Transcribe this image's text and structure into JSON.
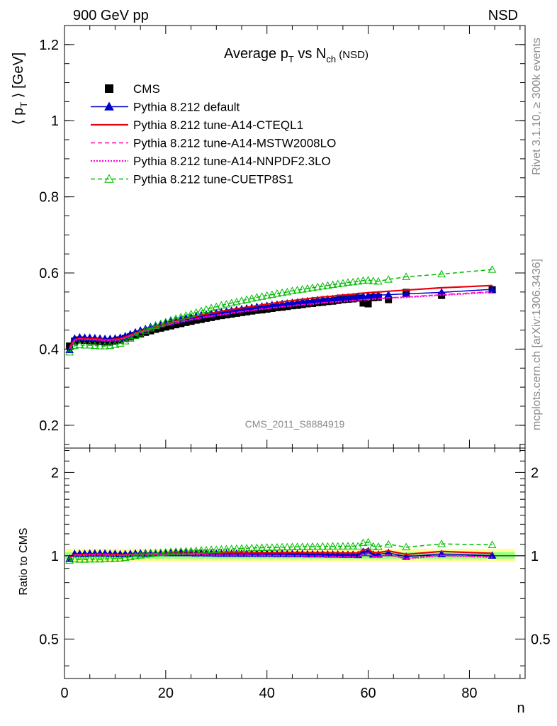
{
  "header": {
    "left": "900 GeV pp",
    "right": "NSD"
  },
  "side_labels": {
    "top": "Rivet 3.1.10, ≥ 300k events",
    "bottom": "mcplots.cern.ch [arXiv:1306.3436]"
  },
  "chart_data": {
    "type": "line",
    "title": "Average p",
    "title_sub1": "T",
    "title_mid": " vs N",
    "title_sub2": "ch",
    "title_suffix": " (NSD)",
    "ylabel_main": "⟨ p",
    "ylabel_sub": "T",
    "ylabel_tail": " ⟩ [GeV]",
    "ratio_ylabel": "Ratio to CMS",
    "xlabel": "n",
    "watermark": "CMS_2011_S8884919",
    "xlim": [
      0,
      91
    ],
    "ylim": [
      0.14,
      1.25
    ],
    "ratio_ylim": [
      0.36,
      2.45
    ],
    "x_ticks": [
      "0",
      "20",
      "40",
      "60",
      "80"
    ],
    "y_ticks": [
      "0.2",
      "0.4",
      "0.6",
      "0.8",
      "1",
      "1.2"
    ],
    "ratio_ticks": [
      "0.5",
      "1",
      "2"
    ],
    "x": [
      1,
      2,
      3,
      4,
      5,
      6,
      7,
      8,
      9,
      10,
      11,
      12,
      13,
      14,
      15,
      16,
      17,
      18,
      19,
      20,
      21,
      22,
      23,
      24,
      25,
      26,
      27,
      28,
      29,
      30,
      31,
      32,
      33,
      34,
      35,
      36,
      37,
      38,
      39,
      40,
      41,
      42,
      43,
      44,
      45,
      46,
      47,
      48,
      49,
      50,
      51,
      52,
      53,
      54,
      55,
      56,
      57,
      58,
      59,
      60,
      61,
      62,
      64,
      67.5,
      74.5,
      84.5
    ],
    "series": [
      {
        "name": "CMS",
        "color": "#000000",
        "style": "square",
        "values": [
          0.408,
          0.421,
          0.424,
          0.423,
          0.422,
          0.421,
          0.42,
          0.419,
          0.42,
          0.421,
          0.424,
          0.428,
          0.432,
          0.436,
          0.44,
          0.444,
          0.448,
          0.452,
          0.455,
          0.458,
          0.461,
          0.464,
          0.467,
          0.47,
          0.473,
          0.476,
          0.478,
          0.481,
          0.483,
          0.486,
          0.488,
          0.49,
          0.492,
          0.494,
          0.496,
          0.498,
          0.5,
          0.502,
          0.503,
          0.505,
          0.507,
          0.509,
          0.51,
          0.512,
          0.514,
          0.515,
          0.517,
          0.519,
          0.52,
          0.522,
          0.523,
          0.525,
          0.526,
          0.528,
          0.53,
          0.531,
          0.532,
          0.534,
          0.521,
          0.519,
          0.535,
          0.536,
          0.53,
          0.549,
          0.541,
          0.556
        ]
      },
      {
        "name": "Pythia 8.212 default",
        "color": "#0000cc",
        "style": "line-tri-filled",
        "values": [
          0.398,
          0.428,
          0.431,
          0.43,
          0.43,
          0.429,
          0.428,
          0.427,
          0.427,
          0.428,
          0.43,
          0.434,
          0.439,
          0.444,
          0.449,
          0.453,
          0.458,
          0.462,
          0.466,
          0.469,
          0.472,
          0.475,
          0.478,
          0.481,
          0.484,
          0.486,
          0.489,
          0.491,
          0.493,
          0.495,
          0.497,
          0.499,
          0.501,
          0.503,
          0.505,
          0.507,
          0.509,
          0.511,
          0.512,
          0.514,
          0.516,
          0.517,
          0.519,
          0.52,
          0.522,
          0.523,
          0.525,
          0.526,
          0.527,
          0.529,
          0.53,
          0.531,
          0.532,
          0.534,
          0.535,
          0.536,
          0.537,
          0.538,
          0.539,
          0.54,
          0.541,
          0.542,
          0.543,
          0.545,
          0.549,
          0.557
        ]
      },
      {
        "name": "Pythia 8.212 tune-A14-CTEQL1",
        "color": "#e8000b",
        "style": "solid",
        "values": [
          0.405,
          0.425,
          0.428,
          0.428,
          0.427,
          0.427,
          0.426,
          0.425,
          0.425,
          0.426,
          0.428,
          0.432,
          0.437,
          0.442,
          0.447,
          0.451,
          0.455,
          0.459,
          0.463,
          0.467,
          0.47,
          0.474,
          0.477,
          0.48,
          0.483,
          0.486,
          0.489,
          0.492,
          0.494,
          0.497,
          0.499,
          0.502,
          0.504,
          0.506,
          0.508,
          0.51,
          0.512,
          0.514,
          0.516,
          0.518,
          0.52,
          0.522,
          0.524,
          0.526,
          0.527,
          0.529,
          0.531,
          0.532,
          0.534,
          0.535,
          0.537,
          0.538,
          0.539,
          0.541,
          0.542,
          0.543,
          0.544,
          0.546,
          0.547,
          0.548,
          0.549,
          0.55,
          0.552,
          0.555,
          0.561,
          0.567
        ]
      },
      {
        "name": "Pythia 8.212 tune-A14-MSTW2008LO",
        "color": "#ff00aa",
        "style": "dashed",
        "values": [
          0.401,
          0.424,
          0.427,
          0.426,
          0.426,
          0.425,
          0.424,
          0.423,
          0.423,
          0.424,
          0.426,
          0.43,
          0.435,
          0.44,
          0.444,
          0.448,
          0.452,
          0.456,
          0.46,
          0.463,
          0.466,
          0.469,
          0.472,
          0.475,
          0.478,
          0.48,
          0.483,
          0.485,
          0.487,
          0.489,
          0.491,
          0.493,
          0.495,
          0.497,
          0.499,
          0.501,
          0.502,
          0.504,
          0.506,
          0.507,
          0.509,
          0.51,
          0.512,
          0.513,
          0.514,
          0.516,
          0.517,
          0.518,
          0.519,
          0.521,
          0.522,
          0.523,
          0.524,
          0.525,
          0.526,
          0.527,
          0.528,
          0.529,
          0.53,
          0.531,
          0.532,
          0.533,
          0.535,
          0.537,
          0.543,
          0.551
        ]
      },
      {
        "name": "Pythia 8.212 tune-A14-NNPDF2.3LO",
        "color": "#ff00dd",
        "style": "dotted",
        "values": [
          0.4,
          0.423,
          0.426,
          0.425,
          0.425,
          0.424,
          0.423,
          0.422,
          0.422,
          0.423,
          0.425,
          0.429,
          0.434,
          0.439,
          0.443,
          0.447,
          0.451,
          0.455,
          0.459,
          0.462,
          0.465,
          0.468,
          0.471,
          0.474,
          0.477,
          0.479,
          0.482,
          0.484,
          0.486,
          0.488,
          0.49,
          0.492,
          0.494,
          0.496,
          0.498,
          0.5,
          0.501,
          0.503,
          0.505,
          0.506,
          0.508,
          0.509,
          0.511,
          0.512,
          0.513,
          0.515,
          0.516,
          0.517,
          0.518,
          0.52,
          0.521,
          0.522,
          0.523,
          0.524,
          0.525,
          0.526,
          0.527,
          0.528,
          0.529,
          0.53,
          0.531,
          0.532,
          0.534,
          0.536,
          0.542,
          0.549
        ]
      },
      {
        "name": "Pythia 8.212 tune-CUETP8S1",
        "color": "#00bb00",
        "style": "dashed-tri-open",
        "values": [
          0.392,
          0.409,
          0.411,
          0.41,
          0.41,
          0.409,
          0.408,
          0.408,
          0.409,
          0.411,
          0.415,
          0.421,
          0.428,
          0.435,
          0.442,
          0.449,
          0.455,
          0.461,
          0.466,
          0.471,
          0.476,
          0.48,
          0.484,
          0.488,
          0.492,
          0.496,
          0.5,
          0.504,
          0.508,
          0.511,
          0.515,
          0.518,
          0.521,
          0.524,
          0.527,
          0.53,
          0.533,
          0.536,
          0.538,
          0.541,
          0.543,
          0.546,
          0.548,
          0.55,
          0.553,
          0.555,
          0.557,
          0.559,
          0.561,
          0.563,
          0.565,
          0.567,
          0.569,
          0.571,
          0.573,
          0.575,
          0.576,
          0.578,
          0.58,
          0.581,
          0.579,
          0.578,
          0.583,
          0.59,
          0.597,
          0.609
        ]
      }
    ],
    "ratio_band_outer": [
      0.95,
      1.06
    ],
    "ratio_band_inner": [
      0.975,
      1.03
    ],
    "legend_position": "top-left"
  }
}
